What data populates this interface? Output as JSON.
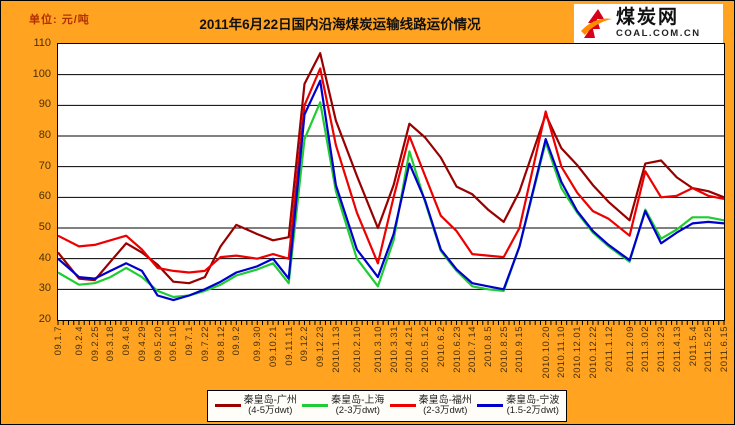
{
  "header": {
    "unit_label": "单位: 元/吨",
    "title": "2011年6月22日国内沿海煤炭运输线路运价情况"
  },
  "logo": {
    "name": "煤炭网",
    "domain": "COAL.COM.CN",
    "mark_red": "#D80018",
    "mark_orange": "#FF8C00"
  },
  "chart_data": {
    "type": "line",
    "title": "2011年6月22日国内沿海煤炭运输线路运价情况",
    "ylabel": "元/吨",
    "ylim": [
      20,
      110
    ],
    "ytick_interval": 10,
    "grid": "horizontal-only",
    "legend_position": "bottom",
    "page_background": "#FFA320",
    "plot_background": "#FFFFFF",
    "x_labels": [
      "09.1.7",
      "09.2.4",
      "09.2.25",
      "09.3.18",
      "09.4.8",
      "09.4.29",
      "09.5.20",
      "09.6.10",
      "09.7.1",
      "09.7.22",
      "09.8.12",
      "09.9.2",
      "09.9.30",
      "09.10.21",
      "09.11.11",
      "09.12.2",
      "09.12.23",
      "2010.1.13",
      "2010.2.10",
      "2010.3.10",
      "2010.3.31",
      "2010.4.21",
      "2010.5.12",
      "2010.6.2",
      "2010.6.23",
      "2010.7.14",
      "2010.8.5",
      "2010.8.25",
      "2010.9.15",
      "2010.10.20",
      "2010.11.10",
      "2010.12.01",
      "2010.12.22",
      "2011.1.12",
      "2011.2.09",
      "2011.3.02",
      "2011.3.23",
      "2011.4.13",
      "2011.5.4",
      "2011.5.25",
      "2011.6.15"
    ],
    "x_weeks": [
      0,
      4,
      7,
      10,
      13,
      16,
      19,
      22,
      25,
      28,
      31,
      34,
      38,
      41,
      44,
      47,
      50,
      53,
      57,
      61,
      64,
      67,
      70,
      73,
      76,
      79,
      82,
      85,
      88,
      93,
      96,
      99,
      102,
      105,
      109,
      112,
      115,
      118,
      121,
      124,
      127
    ],
    "total_weeks": 127,
    "series": [
      {
        "key": "qinhuangdao-guangzhou",
        "name": "秦皇岛-广州",
        "dwt": "(4-5万dwt)",
        "color": "#990000",
        "values": [
          42,
          33.5,
          33,
          39,
          45,
          42,
          38,
          32.5,
          32,
          34,
          44,
          51,
          48,
          46,
          47,
          97,
          107,
          85,
          67,
          50,
          64,
          84,
          79.5,
          73,
          63.5,
          61,
          56,
          52,
          62,
          87,
          76,
          70.5,
          64,
          58.5,
          52.5,
          71,
          72,
          66.5,
          63,
          62,
          60
        ]
      },
      {
        "key": "qinhuangdao-shanghai",
        "name": "秦皇岛-上海",
        "dwt": "(2-3万dwt)",
        "color": "#1FCC33",
        "values": [
          35.5,
          31.5,
          32,
          34,
          37,
          34,
          29.5,
          27.5,
          28,
          29.5,
          31.5,
          34.5,
          36.5,
          38.5,
          32,
          79,
          91,
          62,
          40,
          31,
          46,
          75,
          58.5,
          42.5,
          36,
          31,
          30,
          29.5,
          44,
          78,
          63,
          55,
          48.5,
          44,
          39,
          56,
          46.5,
          49.5,
          53.5,
          53.5,
          52.5
        ]
      },
      {
        "key": "qinhuangdao-fuzhou",
        "name": "秦皇岛-福州",
        "dwt": "(2-3万dwt)",
        "color": "#EE0000",
        "values": [
          47.5,
          44,
          44.5,
          46,
          47.5,
          43,
          37,
          36,
          35.5,
          36,
          40.5,
          41,
          40,
          41.5,
          40,
          90,
          102,
          77,
          55,
          38.5,
          60,
          80,
          67,
          54,
          49,
          41.5,
          41,
          40.5,
          50,
          88,
          70,
          61.5,
          55.5,
          53,
          47.5,
          68.5,
          60,
          60.5,
          63,
          60.5,
          59.5
        ]
      },
      {
        "key": "qinhuangdao-ningbo",
        "name": "秦皇岛-宁波",
        "dwt": "(1.5-2万dwt)",
        "color": "#0000CC",
        "values": [
          40,
          34,
          33.5,
          36,
          38.5,
          36,
          28,
          26.5,
          28,
          30,
          32.5,
          35.5,
          37.5,
          40,
          33.5,
          87,
          98,
          64,
          43,
          34,
          48,
          71,
          59,
          43,
          36.5,
          32,
          31,
          30,
          44,
          79,
          65,
          55.5,
          49,
          44.5,
          39.5,
          55.5,
          45,
          48.5,
          51.5,
          52,
          51.5
        ]
      }
    ]
  }
}
